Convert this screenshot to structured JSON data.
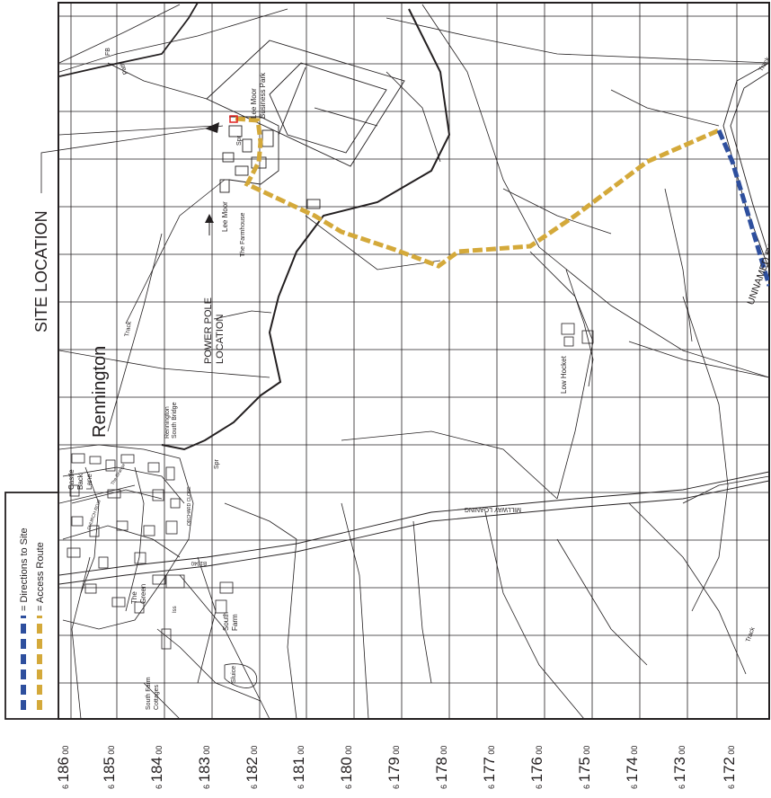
{
  "map": {
    "site_location": "SITE LOCATION",
    "power_pole": [
      "POWER POLE",
      "LOCATION"
    ],
    "village": "Rennington",
    "unnamed_road": "UNNAMED ROAD",
    "road_name": "MILLWAY LOANING",
    "road_number": "B1340",
    "places": {
      "lee_moor": "Lee Moor",
      "the_farmhouse": "The Farmhouse",
      "business_park": [
        "Lee Moor",
        "Business Park"
      ],
      "low_hocket": "Low Hocket",
      "rennington_south_bridge": [
        "Rennington",
        "South Bridge"
      ],
      "south_farm": [
        "South",
        "Farm"
      ],
      "south_farm_cottages": [
        "South Farm",
        "Cottages"
      ],
      "the_green": [
        "The",
        "Green"
      ],
      "castle_back_lane": [
        "Castle",
        "Back",
        "Lane"
      ],
      "the_grange": "The Grange",
      "church_row": "CHURCH ROW",
      "orchard_close": "ORCHARD CLOSE"
    },
    "small_labels": {
      "fb": "FB",
      "path": "Path",
      "track_left": "Track",
      "track_right": "Track",
      "track_bottom": "Track",
      "spr_top": "Spr",
      "spr_mid": "Spr",
      "sluice": "Sluice",
      "iss": "Iss"
    }
  },
  "legend": {
    "items": [
      {
        "label": "= Directions to Site",
        "color": "#2e4f9e"
      },
      {
        "label": "= Access Route",
        "color": "#d4a93a"
      }
    ]
  },
  "grid_labels": [
    {
      "prefix": "6",
      "major": "186",
      "minor": "00"
    },
    {
      "prefix": "6",
      "major": "185",
      "minor": "00"
    },
    {
      "prefix": "6",
      "major": "184",
      "minor": "00"
    },
    {
      "prefix": "6",
      "major": "183",
      "minor": "00"
    },
    {
      "prefix": "6",
      "major": "182",
      "minor": "00"
    },
    {
      "prefix": "6",
      "major": "181",
      "minor": "00"
    },
    {
      "prefix": "6",
      "major": "180",
      "minor": "00"
    },
    {
      "prefix": "6",
      "major": "179",
      "minor": "00"
    },
    {
      "prefix": "6",
      "major": "178",
      "minor": "00"
    },
    {
      "prefix": "6",
      "major": "177",
      "minor": "00"
    },
    {
      "prefix": "6",
      "major": "176",
      "minor": "00"
    },
    {
      "prefix": "6",
      "major": "175",
      "minor": "00"
    },
    {
      "prefix": "6",
      "major": "174",
      "minor": "00"
    },
    {
      "prefix": "6",
      "major": "173",
      "minor": "00"
    },
    {
      "prefix": "6",
      "major": "172",
      "minor": "00"
    }
  ]
}
